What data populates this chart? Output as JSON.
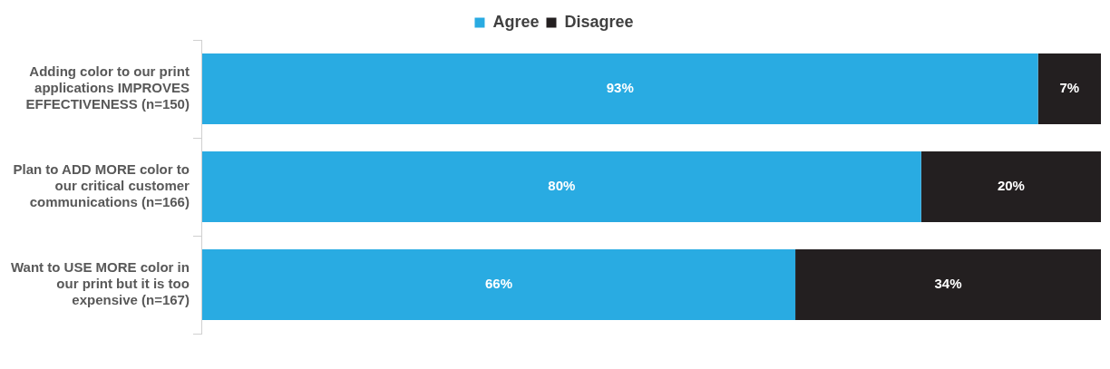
{
  "chart_data": {
    "type": "bar",
    "orientation": "horizontal",
    "stacked": true,
    "categories": [
      "Adding color to our print applications IMPROVES EFFECTIVENESS (n=150)",
      "Plan to ADD MORE color to our critical customer communications (n=166)",
      "Want to USE MORE color in our print but it is too expensive (n=167)"
    ],
    "series": [
      {
        "name": "Agree",
        "color": "#29abe2",
        "values": [
          93,
          80,
          66
        ],
        "value_labels": [
          "93%",
          "80%",
          "66%"
        ]
      },
      {
        "name": "Disagree",
        "color": "#231f20",
        "values": [
          7,
          20,
          34
        ],
        "value_labels": [
          "7%",
          "20%",
          "34%"
        ]
      }
    ],
    "legend": "top",
    "tick_labels": "y"
  }
}
